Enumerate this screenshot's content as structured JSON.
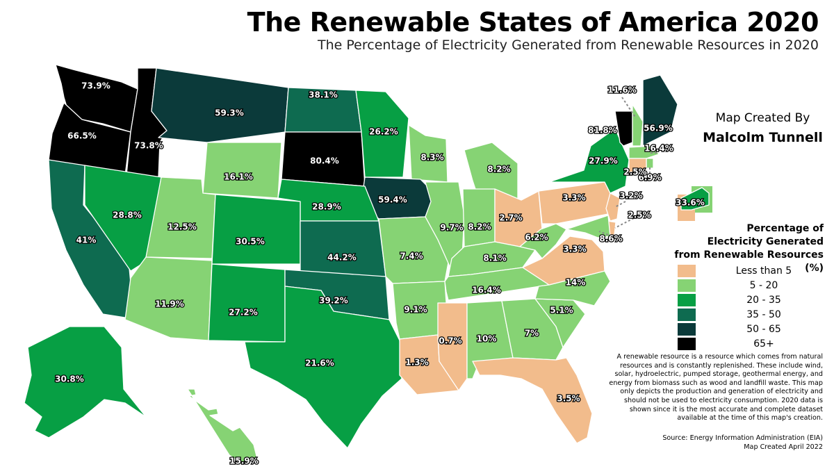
{
  "title": "The Renewable States of America 2020",
  "subtitle": "The Percentage of Electricity Generated from Renewable Resources in 2020",
  "credit": {
    "line1": "Map Created By",
    "line2": "Malcolm Tunnell"
  },
  "legend": {
    "title": "Percentage of\nElectricity Generated\nfrom Renewable Resources (%)",
    "items": [
      {
        "label": "Less than 5",
        "color": "#f2bc8c"
      },
      {
        "label": "5 - 20",
        "color": "#86d374"
      },
      {
        "label": "20 - 35",
        "color": "#079f44"
      },
      {
        "label": "35 - 50",
        "color": "#0e6b50"
      },
      {
        "label": "50 - 65",
        "color": "#0b3a3a"
      },
      {
        "label": "65+",
        "color": "#000000"
      }
    ]
  },
  "note": "A renewable resource is a resource which comes from natural resources and is constantly replenished. These include wind, solar, hydroelectric, pumped storage, geothermal energy, and energy from biomass such as wood and landfill waste. This map only depicts the production and generation of electricity and should not be used to electricity consumption. 2020 data is shown since it is the most accurate and complete dataset available at the time of this map's creation.",
  "source": {
    "line1": "Source: Energy Information Administration (EIA)",
    "line2": "Map Created April 2022"
  },
  "states": [
    {
      "name": "Washington",
      "value": 73.9,
      "label": "73.9%"
    },
    {
      "name": "Oregon",
      "value": 66.5,
      "label": "66.5%"
    },
    {
      "name": "Idaho",
      "value": 73.8,
      "label": "73.8%"
    },
    {
      "name": "Montana",
      "value": 59.3,
      "label": "59.3%"
    },
    {
      "name": "North Dakota",
      "value": 38.1,
      "label": "38.1%"
    },
    {
      "name": "South Dakota",
      "value": 80.4,
      "label": "80.4%"
    },
    {
      "name": "Wyoming",
      "value": 16.1,
      "label": "16.1%"
    },
    {
      "name": "Minnesota",
      "value": 26.2,
      "label": "26.2%"
    },
    {
      "name": "Wisconsin",
      "value": 8.3,
      "label": "8.3%"
    },
    {
      "name": "Michigan",
      "value": 8.2,
      "label": "8.2%"
    },
    {
      "name": "Iowa",
      "value": 59.4,
      "label": "59.4%"
    },
    {
      "name": "Nebraska",
      "value": 28.9,
      "label": "28.9%"
    },
    {
      "name": "California",
      "value": 41,
      "label": "41%"
    },
    {
      "name": "Nevada",
      "value": 28.8,
      "label": "28.8%"
    },
    {
      "name": "Utah",
      "value": 12.5,
      "label": "12.5%"
    },
    {
      "name": "Colorado",
      "value": 30.5,
      "label": "30.5%"
    },
    {
      "name": "Kansas",
      "value": 44.2,
      "label": "44.2%"
    },
    {
      "name": "Arizona",
      "value": 11.9,
      "label": "11.9%"
    },
    {
      "name": "New Mexico",
      "value": 27.2,
      "label": "27.2%"
    },
    {
      "name": "Oklahoma",
      "value": 39.2,
      "label": "39.2%"
    },
    {
      "name": "Texas",
      "value": 21.6,
      "label": "21.6%"
    },
    {
      "name": "Missouri",
      "value": 7.4,
      "label": "7.4%"
    },
    {
      "name": "Arkansas",
      "value": 9.1,
      "label": "9.1%"
    },
    {
      "name": "Louisiana",
      "value": 1.3,
      "label": "1.3%"
    },
    {
      "name": "Illinois",
      "value": 9.7,
      "label": "9.7%"
    },
    {
      "name": "Indiana",
      "value": 8.2,
      "label": "8.2%"
    },
    {
      "name": "Ohio",
      "value": 2.7,
      "label": "2.7%"
    },
    {
      "name": "Kentucky",
      "value": 8.1,
      "label": "8.1%"
    },
    {
      "name": "Tennessee",
      "value": 16.4,
      "label": "16.4%"
    },
    {
      "name": "Mississippi",
      "value": 0.7,
      "label": "0.7%"
    },
    {
      "name": "Alabama",
      "value": 10,
      "label": "10%"
    },
    {
      "name": "Georgia",
      "value": 7,
      "label": "7%"
    },
    {
      "name": "Florida",
      "value": 3.5,
      "label": "3.5%"
    },
    {
      "name": "South Carolina",
      "value": 5.1,
      "label": "5.1%"
    },
    {
      "name": "North Carolina",
      "value": 14,
      "label": "14%"
    },
    {
      "name": "Virginia",
      "value": 3.3,
      "label": "3.3%"
    },
    {
      "name": "West Virginia",
      "value": 6.2,
      "label": "6.2%"
    },
    {
      "name": "Pennsylvania",
      "value": 3.3,
      "label": "3.3%"
    },
    {
      "name": "New York",
      "value": 27.9,
      "label": "27.9%"
    },
    {
      "name": "Vermont",
      "value": 81.8,
      "label": "81.8%"
    },
    {
      "name": "New Hampshire",
      "value": 11.6,
      "label": "11.6%"
    },
    {
      "name": "Maine",
      "value": 56.9,
      "label": "56.9%"
    },
    {
      "name": "Massachusetts",
      "value": 16.4,
      "label": "16.4%"
    },
    {
      "name": "Rhode Island",
      "value": 6.9,
      "label": "6.9%"
    },
    {
      "name": "Connecticut",
      "value": 2.5,
      "label": "2.5%"
    },
    {
      "name": "New Jersey",
      "value": 3.2,
      "label": "3.2%"
    },
    {
      "name": "Delaware",
      "value": 2.5,
      "label": "2.5%"
    },
    {
      "name": "Maryland",
      "value": 8.6,
      "label": "8.6%"
    },
    {
      "name": "District of Columbia",
      "value": 33.6,
      "label": "33.6%"
    },
    {
      "name": "Alaska",
      "value": 30.8,
      "label": "30.8%"
    },
    {
      "name": "Hawaii",
      "value": 15.9,
      "label": "15.9%"
    }
  ]
}
